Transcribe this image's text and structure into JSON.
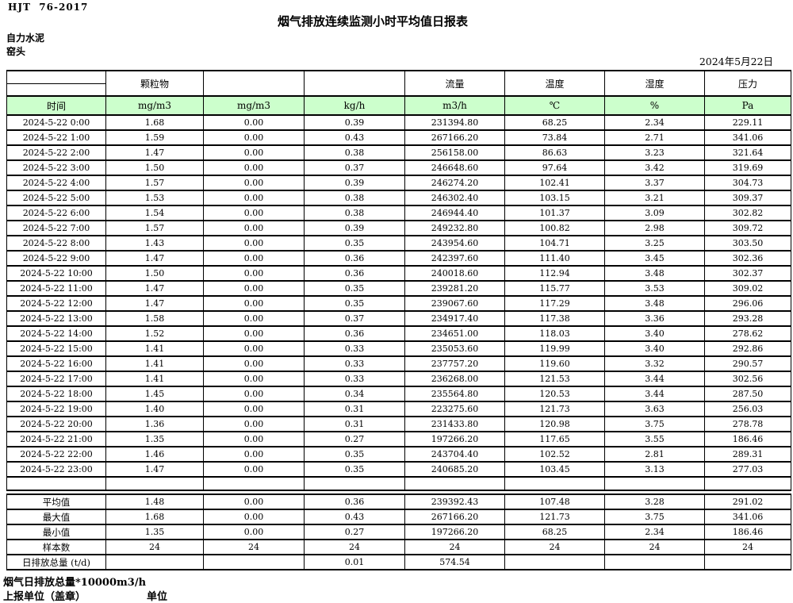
{
  "meta": {
    "standard": "HJT  76-2017",
    "title": "烟气排放连续监测小时平均值日报表",
    "company": "自力水泥",
    "location": "窑头",
    "date": "2024年5月22日"
  },
  "table": {
    "header_bg": "#ccffcc",
    "group_headers": [
      "",
      "颗粒物",
      "",
      "",
      "流量",
      "温度",
      "湿度",
      "压力"
    ],
    "unit_headers": [
      "时间",
      "mg/m3",
      "mg/m3",
      "kg/h",
      "m3/h",
      "℃",
      "%",
      "Pa"
    ],
    "rows": [
      [
        "2024-5-22 0:00",
        "1.68",
        "0.00",
        "0.39",
        "231394.80",
        "68.25",
        "2.34",
        "229.11"
      ],
      [
        "2024-5-22 1:00",
        "1.59",
        "0.00",
        "0.43",
        "267166.20",
        "73.84",
        "2.71",
        "341.06"
      ],
      [
        "2024-5-22 2:00",
        "1.47",
        "0.00",
        "0.38",
        "256158.00",
        "86.63",
        "3.23",
        "321.64"
      ],
      [
        "2024-5-22 3:00",
        "1.50",
        "0.00",
        "0.37",
        "246648.60",
        "97.64",
        "3.42",
        "319.69"
      ],
      [
        "2024-5-22 4:00",
        "1.57",
        "0.00",
        "0.39",
        "246274.20",
        "102.41",
        "3.37",
        "304.73"
      ],
      [
        "2024-5-22 5:00",
        "1.53",
        "0.00",
        "0.38",
        "246302.40",
        "103.15",
        "3.21",
        "309.37"
      ],
      [
        "2024-5-22 6:00",
        "1.54",
        "0.00",
        "0.38",
        "246944.40",
        "101.37",
        "3.09",
        "302.82"
      ],
      [
        "2024-5-22 7:00",
        "1.57",
        "0.00",
        "0.39",
        "249232.80",
        "100.82",
        "2.98",
        "309.72"
      ],
      [
        "2024-5-22 8:00",
        "1.43",
        "0.00",
        "0.35",
        "243954.60",
        "104.71",
        "3.25",
        "303.50"
      ],
      [
        "2024-5-22 9:00",
        "1.47",
        "0.00",
        "0.36",
        "242397.60",
        "111.40",
        "3.45",
        "302.36"
      ],
      [
        "2024-5-22 10:00",
        "1.50",
        "0.00",
        "0.36",
        "240018.60",
        "112.94",
        "3.48",
        "302.37"
      ],
      [
        "2024-5-22 11:00",
        "1.47",
        "0.00",
        "0.35",
        "239281.20",
        "115.77",
        "3.53",
        "309.02"
      ],
      [
        "2024-5-22 12:00",
        "1.47",
        "0.00",
        "0.35",
        "239067.60",
        "117.29",
        "3.48",
        "296.06"
      ],
      [
        "2024-5-22 13:00",
        "1.58",
        "0.00",
        "0.37",
        "234917.40",
        "117.38",
        "3.36",
        "293.28"
      ],
      [
        "2024-5-22 14:00",
        "1.52",
        "0.00",
        "0.36",
        "234651.00",
        "118.03",
        "3.40",
        "278.62"
      ],
      [
        "2024-5-22 15:00",
        "1.41",
        "0.00",
        "0.33",
        "235053.60",
        "119.99",
        "3.40",
        "292.86"
      ],
      [
        "2024-5-22 16:00",
        "1.41",
        "0.00",
        "0.33",
        "237757.20",
        "119.60",
        "3.32",
        "290.57"
      ],
      [
        "2024-5-22 17:00",
        "1.41",
        "0.00",
        "0.33",
        "236268.00",
        "121.53",
        "3.44",
        "302.56"
      ],
      [
        "2024-5-22 18:00",
        "1.45",
        "0.00",
        "0.34",
        "235564.80",
        "120.53",
        "3.44",
        "287.50"
      ],
      [
        "2024-5-22 19:00",
        "1.40",
        "0.00",
        "0.31",
        "223275.60",
        "121.73",
        "3.63",
        "256.03"
      ],
      [
        "2024-5-22 20:00",
        "1.36",
        "0.00",
        "0.31",
        "231433.80",
        "120.98",
        "3.75",
        "278.78"
      ],
      [
        "2024-5-22 21:00",
        "1.35",
        "0.00",
        "0.27",
        "197266.20",
        "117.65",
        "3.55",
        "186.46"
      ],
      [
        "2024-5-22 22:00",
        "1.46",
        "0.00",
        "0.35",
        "243704.40",
        "102.52",
        "2.81",
        "289.31"
      ],
      [
        "2024-5-22 23:00",
        "1.47",
        "0.00",
        "0.35",
        "240685.20",
        "103.45",
        "3.13",
        "277.03"
      ]
    ],
    "summary_rows": [
      [
        "平均值",
        "1.48",
        "0.00",
        "0.36",
        "239392.43",
        "107.48",
        "3.28",
        "291.02"
      ],
      [
        "最大值",
        "1.68",
        "0.00",
        "0.43",
        "267166.20",
        "121.73",
        "3.75",
        "341.06"
      ],
      [
        "最小值",
        "1.35",
        "0.00",
        "0.27",
        "197266.20",
        "68.25",
        "2.34",
        "186.46"
      ],
      [
        "样本数",
        "24",
        "24",
        "24",
        "24",
        "24",
        "24",
        "24"
      ],
      [
        "日排放总量 (t/d)",
        "",
        "",
        "0.01",
        "574.54",
        "",
        "",
        ""
      ]
    ]
  },
  "footer": {
    "note": "烟气日排放总量*10000m3/h",
    "report_unit_label": "上报单位（盖章）",
    "unit_label": "单位"
  }
}
